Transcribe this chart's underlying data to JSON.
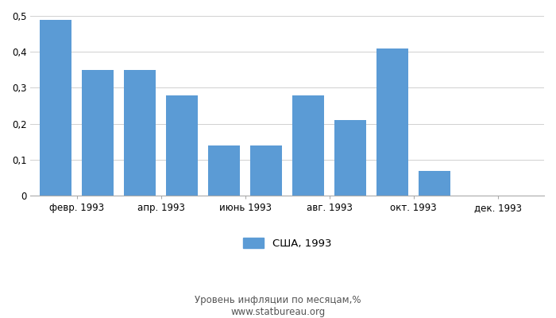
{
  "months_count": 12,
  "values": [
    0.49,
    0.35,
    0.35,
    0.28,
    0.14,
    0.14,
    0.28,
    0.21,
    0.41,
    0.07,
    0.0,
    0.0
  ],
  "xtick_labels": [
    "февр. 1993",
    "апр. 1993",
    "июнь 1993",
    "авг. 1993",
    "окт. 1993",
    "дек. 1993"
  ],
  "bar_color": "#5b9bd5",
  "legend_label": "США, 1993",
  "bottom_label": "Уровень инфляции по месяцам,%",
  "source_text": "www.statbureau.org",
  "ylim": [
    0,
    0.5
  ],
  "yticks": [
    0,
    0.1,
    0.2,
    0.3,
    0.4,
    0.5
  ],
  "ytick_labels": [
    "0",
    "0,1",
    "0,2",
    "0,3",
    "0,4",
    "0,5"
  ],
  "background_color": "#ffffff",
  "grid_color": "#d0d0d0"
}
